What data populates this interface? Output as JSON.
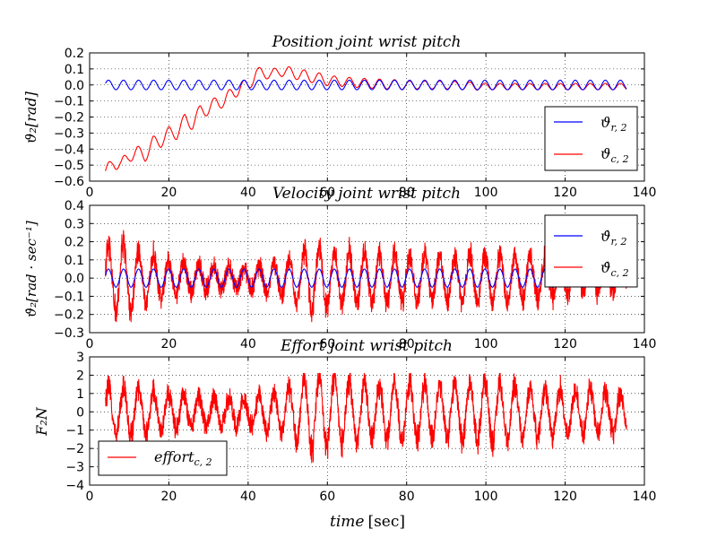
{
  "chart_data": [
    {
      "type": "line",
      "title": "Position  joint wrist pitch",
      "ylabel": "ϑ₂[rad]",
      "xlabel": "",
      "xlim": [
        0,
        140
      ],
      "ylim": [
        -0.6,
        0.2
      ],
      "xticks": [
        0,
        20,
        40,
        60,
        80,
        100,
        120,
        140
      ],
      "xtick_labels": [
        "0",
        "20",
        "40",
        "60",
        "80",
        "100",
        "120",
        "140"
      ],
      "yticks": [
        -0.6,
        -0.5,
        -0.4,
        -0.3,
        -0.2,
        -0.1,
        0.0,
        0.1,
        0.2
      ],
      "ytick_labels": [
        "−0.6",
        "−0.5",
        "−0.4",
        "−0.3",
        "−0.2",
        "−0.1",
        "0.0",
        "0.1",
        "0.2"
      ],
      "grid": true,
      "legend_position": "bottom-right",
      "series": [
        {
          "name": "ϑr,2",
          "color": "#0000ff",
          "kind": "sine",
          "t_range": [
            4,
            135.5
          ],
          "amplitude": 0.03,
          "period": 3.8,
          "offset": 0.0
        },
        {
          "name": "ϑc,2",
          "color": "#ff0000",
          "x": [
            4,
            6,
            8,
            10,
            12,
            14,
            16,
            18,
            20,
            22,
            24,
            26,
            28,
            30,
            32,
            34,
            36,
            38,
            40,
            42,
            44,
            46,
            48,
            50,
            52,
            54,
            56,
            58,
            60,
            64,
            70,
            80,
            90,
            100,
            110,
            120,
            130,
            135.5
          ],
          "y": [
            -0.55,
            -0.48,
            -0.5,
            -0.44,
            -0.42,
            -0.44,
            -0.36,
            -0.35,
            -0.3,
            -0.3,
            -0.22,
            -0.24,
            -0.16,
            -0.15,
            -0.11,
            -0.1,
            -0.05,
            -0.02,
            0.0,
            0.07,
            0.08,
            0.06,
            0.09,
            0.08,
            0.07,
            0.06,
            0.05,
            0.04,
            0.03,
            0.02,
            0.01,
            0.0,
            0.0,
            -0.01,
            -0.01,
            -0.01,
            -0.01,
            -0.01
          ],
          "ripple_amplitude": [
            0.04,
            0.04,
            0.035,
            0.03,
            0.025,
            0.02,
            0.02
          ],
          "ripple_period": 3.8
        }
      ]
    },
    {
      "type": "line",
      "title": "Velocity  joint wrist pitch",
      "ylabel": "ϑ̇₂[rad · sec⁻¹]",
      "xlabel": "",
      "xlim": [
        0,
        140
      ],
      "ylim": [
        -0.3,
        0.4
      ],
      "xticks": [
        0,
        20,
        40,
        60,
        80,
        100,
        120,
        140
      ],
      "xtick_labels": [
        "0",
        "20",
        "40",
        "60",
        "80",
        "100",
        "120",
        "140"
      ],
      "yticks": [
        -0.3,
        -0.2,
        -0.1,
        0.0,
        0.1,
        0.2,
        0.3,
        0.4
      ],
      "ytick_labels": [
        "−0.3",
        "−0.2",
        "−0.1",
        "0.0",
        "0.1",
        "0.2",
        "0.3",
        "0.4"
      ],
      "grid": true,
      "legend_position": "top-right",
      "series": [
        {
          "name": "ϑ̇r,2",
          "color": "#0000ff",
          "kind": "sine",
          "t_range": [
            4,
            135.5
          ],
          "amplitude": 0.05,
          "period": 3.8,
          "offset": 0.0
        },
        {
          "name": "ϑ̇c,2",
          "color": "#ff0000",
          "kind": "noisy-oscillation",
          "t_range": [
            4,
            135.5
          ],
          "period": 3.8,
          "envelope_x": [
            4,
            8,
            12,
            20,
            30,
            40,
            50,
            56,
            60,
            70,
            80,
            90,
            100,
            110,
            120,
            130,
            135.5
          ],
          "envelope_y": [
            0.2,
            0.26,
            0.2,
            0.12,
            0.08,
            0.07,
            0.13,
            0.22,
            0.2,
            0.17,
            0.17,
            0.16,
            0.18,
            0.15,
            0.12,
            0.1,
            0.08
          ],
          "noise": 0.05,
          "min": -0.24,
          "max": 0.31
        }
      ]
    },
    {
      "type": "line",
      "title": "Effort  joint wrist pitch",
      "ylabel": "F₂N",
      "xlabel": "time [sec]",
      "xlim": [
        0,
        140
      ],
      "ylim": [
        -4,
        3
      ],
      "xticks": [
        0,
        20,
        40,
        60,
        80,
        100,
        120,
        140
      ],
      "xtick_labels": [
        "0",
        "20",
        "40",
        "60",
        "80",
        "100",
        "120",
        "140"
      ],
      "yticks": [
        -4,
        -3,
        -2,
        -1,
        0,
        1,
        2,
        3
      ],
      "ytick_labels": [
        "−4",
        "−3",
        "−2",
        "−1",
        "0",
        "1",
        "2",
        "3"
      ],
      "grid": true,
      "legend_position": "bottom-left",
      "series": [
        {
          "name": "effortc,2",
          "color": "#ff0000",
          "kind": "noisy-oscillation",
          "t_range": [
            4,
            135.5
          ],
          "period": 3.8,
          "envelope_x": [
            4,
            10,
            20,
            30,
            40,
            50,
            56,
            60,
            70,
            80,
            90,
            100,
            110,
            120,
            130,
            135.5
          ],
          "envelope_y": [
            1.6,
            1.8,
            1.2,
            1.0,
            1.0,
            1.6,
            2.8,
            2.4,
            2.0,
            2.0,
            1.8,
            2.2,
            1.8,
            1.6,
            1.6,
            1.2
          ],
          "noise": 0.5,
          "min": -3.6,
          "max": 2.1
        }
      ]
    }
  ],
  "labels": {
    "title_1_text": "Position  joint wrist pitch",
    "title_2_text": "Velocity  joint wrist pitch",
    "title_3_text": "Effort  joint wrist pitch",
    "ylabel_1": "ϑ₂[rad]",
    "ylabel_2": "ϑ̇₂[rad · sec⁻¹]",
    "ylabel_3": "F₂N",
    "xlabel_time": "time",
    "xlabel_unit": "[sec]",
    "legend_1_a_base": "ϑ",
    "legend_1_a_sub": "r, 2",
    "legend_1_b_base": "ϑ",
    "legend_1_b_sub": "c, 2",
    "legend_2_a_base": "ϑ̇",
    "legend_2_a_sub": "r, 2",
    "legend_2_b_base": "ϑ̇",
    "legend_2_b_sub": "c, 2",
    "legend_3_base": "effort",
    "legend_3_sub": "c, 2"
  }
}
